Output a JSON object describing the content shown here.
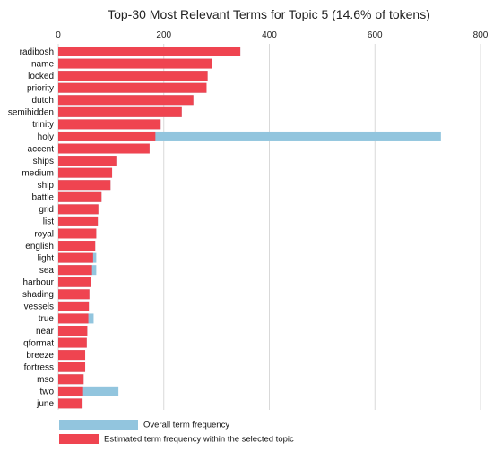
{
  "chart_data": {
    "type": "bar",
    "orientation": "horizontal",
    "title": "Top-30 Most Relevant Terms for Topic 5 (14.6% of tokens)",
    "xlabel": "",
    "ylabel": "",
    "xlim": [
      0,
      800
    ],
    "xticks": [
      0,
      200,
      400,
      600,
      800
    ],
    "grid": true,
    "legend_position": "bottom-left",
    "categories": [
      "radibosh",
      "name",
      "locked",
      "priority",
      "dutch",
      "semihidden",
      "trinity",
      "holy",
      "accent",
      "ships",
      "medium",
      "ship",
      "battle",
      "grid",
      "list",
      "royal",
      "english",
      "light",
      "sea",
      "harbour",
      "shading",
      "vessels",
      "true",
      "near",
      "qformat",
      "breeze",
      "fortress",
      "mso",
      "two",
      "june"
    ],
    "series": [
      {
        "name": "Overall term frequency",
        "color": "#92c5de",
        "values": [
          345,
          292,
          283,
          281,
          256,
          234,
          194,
          725,
          173,
          110,
          102,
          99,
          82,
          76,
          75,
          72,
          70,
          72,
          72,
          62,
          59,
          58,
          67,
          55,
          54,
          51,
          51,
          48,
          114,
          46
        ]
      },
      {
        "name": "Estimated term frequency within the selected topic",
        "color": "#ef4450",
        "values": [
          345,
          292,
          283,
          281,
          256,
          234,
          194,
          184,
          173,
          110,
          102,
          99,
          82,
          76,
          75,
          72,
          70,
          66,
          64,
          62,
          59,
          58,
          57,
          55,
          54,
          51,
          51,
          48,
          47,
          46
        ]
      }
    ]
  }
}
